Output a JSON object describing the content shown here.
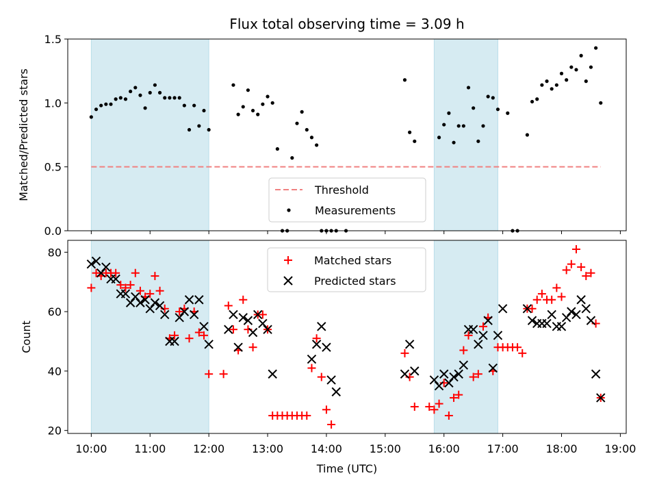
{
  "chart_data": [
    {
      "type": "scatter",
      "title": "Flux total observing time = 3.09 h",
      "xlabel": "",
      "ylabel": "Matched/Predicted stars",
      "xlim": [
        "09:36",
        "19:06"
      ],
      "ylim": [
        0,
        1.5
      ],
      "yticks": [
        "0.0",
        "0.5",
        "1.0",
        "1.5"
      ],
      "shaded_intervals": [
        [
          "10:00",
          "12:00"
        ],
        [
          "15:50",
          "16:55"
        ]
      ],
      "threshold": {
        "name": "Threshold",
        "value": 0.5,
        "x": [
          "10:00",
          "18:40"
        ],
        "color": "#f08080"
      },
      "legend": {
        "placement": "lower-center",
        "entries": [
          "Threshold",
          "Measurements"
        ]
      },
      "series": [
        {
          "name": "Measurements",
          "color": "#000000",
          "marker": "dot",
          "x": [
            "10:00",
            "10:05",
            "10:10",
            "10:15",
            "10:20",
            "10:25",
            "10:30",
            "10:35",
            "10:40",
            "10:45",
            "10:50",
            "10:55",
            "11:00",
            "11:05",
            "11:10",
            "11:15",
            "11:20",
            "11:25",
            "11:30",
            "11:35",
            "11:40",
            "11:45",
            "11:50",
            "11:55",
            "12:00",
            "12:25",
            "12:30",
            "12:35",
            "12:40",
            "12:45",
            "12:50",
            "12:55",
            "13:00",
            "13:05",
            "13:10",
            "13:15",
            "13:20",
            "13:25",
            "13:30",
            "13:35",
            "13:40",
            "13:45",
            "13:50",
            "13:55",
            "14:00",
            "14:05",
            "14:10",
            "14:20",
            "15:20",
            "15:25",
            "15:30",
            "15:55",
            "16:00",
            "16:05",
            "16:10",
            "16:15",
            "16:20",
            "16:25",
            "16:30",
            "16:35",
            "16:40",
            "16:45",
            "16:50",
            "16:55",
            "17:05",
            "17:10",
            "17:15",
            "17:25",
            "17:30",
            "17:35",
            "17:40",
            "17:45",
            "17:50",
            "17:55",
            "18:00",
            "18:05",
            "18:10",
            "18:15",
            "18:20",
            "18:25",
            "18:30",
            "18:35",
            "18:40"
          ],
          "y": [
            0.89,
            0.95,
            0.98,
            0.99,
            0.99,
            1.03,
            1.04,
            1.03,
            1.09,
            1.12,
            1.06,
            0.96,
            1.08,
            1.14,
            1.08,
            1.04,
            1.04,
            1.04,
            1.04,
            0.98,
            0.79,
            0.98,
            0.82,
            0.94,
            0.79,
            1.14,
            0.91,
            0.97,
            1.1,
            0.94,
            0.91,
            0.99,
            1.05,
            1.0,
            0.64,
            0.0,
            0.0,
            0.57,
            0.84,
            0.93,
            0.79,
            0.73,
            0.67,
            0.0,
            0.0,
            0.0,
            0.0,
            0.0,
            1.18,
            0.77,
            0.7,
            0.73,
            0.83,
            0.92,
            0.69,
            0.82,
            0.82,
            1.12,
            0.96,
            0.7,
            0.82,
            1.05,
            1.04,
            0.95,
            0.92,
            0.0,
            0.0,
            0.75,
            1.01,
            1.03,
            1.14,
            1.17,
            1.11,
            1.14,
            1.23,
            1.18,
            1.28,
            1.26,
            1.37,
            1.17,
            1.28,
            1.43,
            1.0
          ]
        }
      ]
    },
    {
      "type": "scatter",
      "title": "",
      "xlabel": "Time (UTC)",
      "ylabel": "Count",
      "xlim": [
        "09:36",
        "19:06"
      ],
      "ylim": [
        19,
        84
      ],
      "yticks": [
        "20",
        "40",
        "60",
        "80"
      ],
      "xticks": [
        "10:00",
        "11:00",
        "12:00",
        "13:00",
        "14:00",
        "15:00",
        "16:00",
        "17:00",
        "18:00",
        "19:00"
      ],
      "shaded_intervals": [
        [
          "10:00",
          "12:00"
        ],
        [
          "15:50",
          "16:55"
        ]
      ],
      "legend": {
        "placement": "upper-center",
        "entries": [
          "Matched stars",
          "Predicted stars"
        ]
      },
      "series": [
        {
          "name": "Matched stars",
          "color": "#ff0000",
          "marker": "plus",
          "x": [
            "10:00",
            "10:05",
            "10:10",
            "10:15",
            "10:20",
            "10:25",
            "10:30",
            "10:35",
            "10:40",
            "10:45",
            "10:50",
            "10:55",
            "11:00",
            "11:05",
            "11:10",
            "11:15",
            "11:20",
            "11:25",
            "11:30",
            "11:35",
            "11:40",
            "11:45",
            "11:50",
            "11:55",
            "12:00",
            "12:15",
            "12:20",
            "12:25",
            "12:30",
            "12:35",
            "12:40",
            "12:45",
            "12:50",
            "12:55",
            "13:00",
            "13:05",
            "13:10",
            "13:15",
            "13:20",
            "13:25",
            "13:30",
            "13:35",
            "13:40",
            "13:45",
            "13:50",
            "13:55",
            "14:00",
            "14:05",
            "15:20",
            "15:25",
            "15:30",
            "15:45",
            "15:50",
            "15:55",
            "16:00",
            "16:05",
            "16:10",
            "16:15",
            "16:20",
            "16:25",
            "16:30",
            "16:35",
            "16:40",
            "16:45",
            "16:50",
            "16:55",
            "17:00",
            "17:05",
            "17:10",
            "17:15",
            "17:20",
            "17:25",
            "17:30",
            "17:35",
            "17:40",
            "17:45",
            "17:50",
            "17:55",
            "18:00",
            "18:05",
            "18:10",
            "18:15",
            "18:20",
            "18:25",
            "18:30",
            "18:35",
            "18:40"
          ],
          "y": [
            68,
            73,
            72,
            73,
            73,
            73,
            69,
            68,
            69,
            73,
            67,
            65,
            66,
            72,
            67,
            61,
            51,
            52,
            60,
            61,
            51,
            60,
            53,
            52,
            39,
            39,
            62,
            54,
            47,
            64,
            54,
            48,
            59,
            59,
            54,
            25,
            25,
            25,
            25,
            25,
            25,
            25,
            25,
            41,
            51,
            38,
            27,
            22,
            46,
            38,
            28,
            28,
            27,
            29,
            36,
            25,
            31,
            32,
            47,
            52,
            38,
            39,
            55,
            58,
            40,
            48,
            48,
            48,
            48,
            48,
            46,
            61,
            61,
            64,
            66,
            64,
            64,
            68,
            65,
            74,
            76,
            81,
            75,
            72,
            73,
            56,
            31
          ]
        },
        {
          "name": "Predicted stars",
          "color": "#000000",
          "marker": "x",
          "x": [
            "10:00",
            "10:05",
            "10:10",
            "10:15",
            "10:20",
            "10:25",
            "10:30",
            "10:35",
            "10:40",
            "10:45",
            "10:50",
            "10:55",
            "11:00",
            "11:05",
            "11:10",
            "11:15",
            "11:20",
            "11:25",
            "11:30",
            "11:35",
            "11:40",
            "11:45",
            "11:50",
            "11:55",
            "12:00",
            "12:20",
            "12:25",
            "12:30",
            "12:35",
            "12:40",
            "12:45",
            "12:50",
            "12:55",
            "13:00",
            "13:05",
            "13:45",
            "13:50",
            "13:55",
            "14:00",
            "14:05",
            "14:10",
            "15:20",
            "15:25",
            "15:30",
            "15:50",
            "15:55",
            "16:00",
            "16:05",
            "16:10",
            "16:15",
            "16:20",
            "16:25",
            "16:30",
            "16:35",
            "16:40",
            "16:45",
            "16:50",
            "16:55",
            "17:00",
            "17:25",
            "17:30",
            "17:35",
            "17:40",
            "17:45",
            "17:50",
            "17:55",
            "18:00",
            "18:05",
            "18:10",
            "18:15",
            "18:20",
            "18:25",
            "18:30",
            "18:35",
            "18:40"
          ],
          "y": [
            76,
            77,
            73,
            75,
            71,
            71,
            66,
            66,
            63,
            65,
            63,
            64,
            61,
            63,
            62,
            59,
            50,
            50,
            58,
            60,
            64,
            59,
            64,
            55,
            49,
            54,
            59,
            48,
            58,
            57,
            53,
            59,
            56,
            54,
            39,
            44,
            49,
            55,
            48,
            37,
            33,
            39,
            49,
            40,
            37,
            35,
            39,
            36,
            38,
            39,
            42,
            54,
            54,
            49,
            52,
            57,
            41,
            52,
            61,
            61,
            57,
            56,
            56,
            56,
            59,
            55,
            55,
            58,
            60,
            59,
            64,
            61,
            57,
            39,
            31
          ]
        }
      ]
    }
  ]
}
